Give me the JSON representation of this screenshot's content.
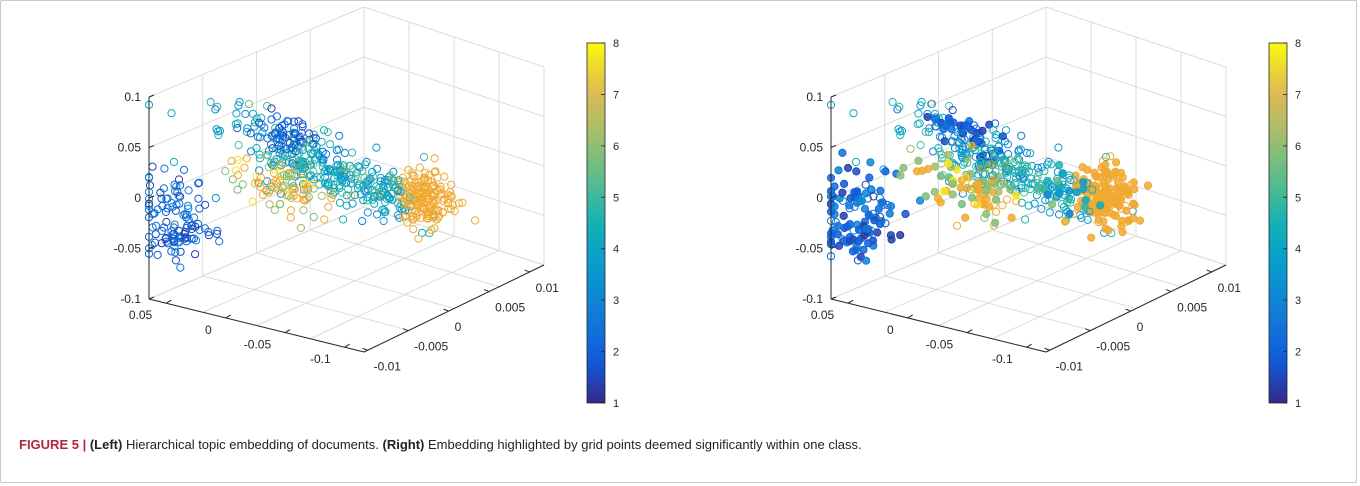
{
  "caption": {
    "figure_label": "FIGURE 5 |",
    "left_tag": "(Left)",
    "left_text": "Hierarchical topic embedding of documents.",
    "right_tag": "(Right)",
    "right_text": "Embedding highlighted by grid points deemed significantly within one class."
  },
  "chart_data": [
    {
      "panel": "left",
      "type": "scatter",
      "projection": "3d",
      "title": "",
      "marker": "open-circle",
      "z_ticks": [
        "0.1",
        "0.05",
        "0",
        "-0.05",
        "-0.1"
      ],
      "y_ticks": [
        "0.05",
        "0",
        "-0.05",
        "-0.1"
      ],
      "x_ticks": [
        "-0.01",
        "-0.005",
        "0",
        "0.005",
        "0.01"
      ],
      "zlim": [
        -0.1,
        0.1
      ],
      "ylim": [
        -0.1,
        0.05
      ],
      "xlim": [
        -0.01,
        0.01
      ],
      "grid": true,
      "colorbar": {
        "ticks": [
          "8",
          "7",
          "6",
          "5",
          "4",
          "3",
          "2",
          "1"
        ],
        "range": [
          1,
          8
        ],
        "colormap": "parula"
      },
      "series": [
        {
          "cluster": "blue-violet arm",
          "class_range": [
            1,
            3
          ],
          "approx_points": 110,
          "extent_z": [
            -0.085,
            -0.02
          ]
        },
        {
          "cluster": "upper ridge",
          "class_range": [
            2,
            5
          ],
          "approx_points": 250,
          "extent_z": [
            0.0,
            0.095
          ]
        },
        {
          "cluster": "central yellow band",
          "class_range": [
            6,
            8
          ],
          "approx_points": 90,
          "extent_z": [
            -0.06,
            -0.02
          ]
        },
        {
          "cluster": "orange right lobe",
          "class_range": [
            6,
            7.5
          ],
          "approx_points": 180,
          "extent_z": [
            -0.08,
            -0.01
          ]
        }
      ]
    },
    {
      "panel": "right",
      "type": "scatter",
      "projection": "3d",
      "title": "",
      "marker": "open-circle with filled highlighted grid points",
      "z_ticks": [
        "0.1",
        "0.05",
        "0",
        "-0.05",
        "-0.1"
      ],
      "y_ticks": [
        "0.05",
        "0",
        "-0.05",
        "-0.1"
      ],
      "x_ticks": [
        "-0.01",
        "-0.005",
        "0",
        "0.005",
        "0.01"
      ],
      "zlim": [
        -0.1,
        0.1
      ],
      "ylim": [
        -0.1,
        0.05
      ],
      "xlim": [
        -0.01,
        0.01
      ],
      "grid": true,
      "colorbar": {
        "ticks": [
          "8",
          "7",
          "6",
          "5",
          "4",
          "3",
          "2",
          "1"
        ],
        "range": [
          1,
          8
        ],
        "colormap": "parula"
      },
      "series": [
        {
          "cluster": "blue arm (highlighted)",
          "class_range": [
            1,
            3
          ],
          "approx_points": 120,
          "filled": true
        },
        {
          "cluster": "dark-blue ridge top (highlighted)",
          "class_range": [
            1,
            2
          ],
          "approx_points": 60,
          "filled": true
        },
        {
          "cluster": "upper ridge",
          "class_range": [
            3,
            5
          ],
          "approx_points": 200,
          "filled": false
        },
        {
          "cluster": "central yellow band",
          "class_range": [
            7,
            8
          ],
          "approx_points": 90,
          "filled": true
        },
        {
          "cluster": "orange right lobe (highlighted)",
          "class_range": [
            6,
            7.5
          ],
          "approx_points": 180,
          "filled": true
        }
      ]
    }
  ]
}
